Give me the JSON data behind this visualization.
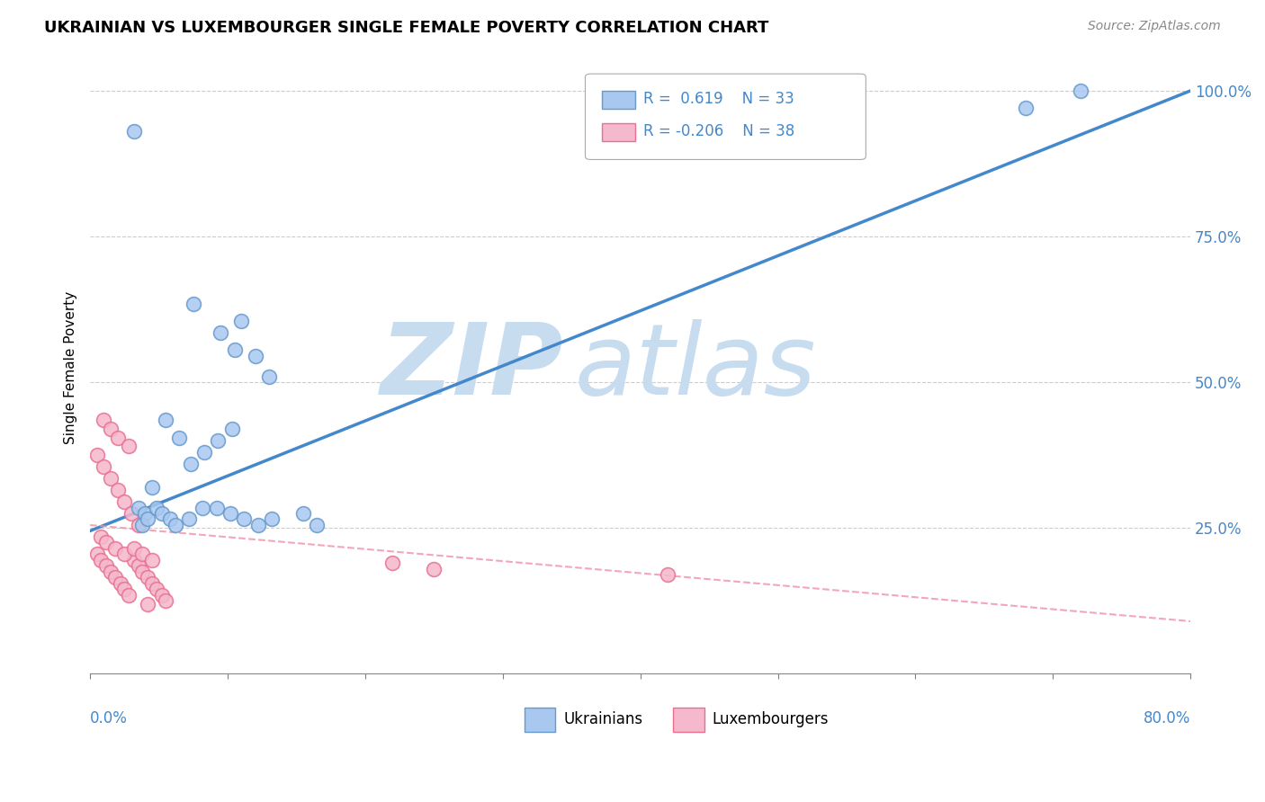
{
  "title": "UKRAINIAN VS LUXEMBOURGER SINGLE FEMALE POVERTY CORRELATION CHART",
  "source": "Source: ZipAtlas.com",
  "ylabel": "Single Female Poverty",
  "yticks": [
    0.0,
    0.25,
    0.5,
    0.75,
    1.0
  ],
  "ytick_labels": [
    "",
    "25.0%",
    "50.0%",
    "75.0%",
    "100.0%"
  ],
  "xlim": [
    0.0,
    0.8
  ],
  "ylim": [
    0.0,
    1.05
  ],
  "blue_color": "#A8C8F0",
  "blue_edge_color": "#6699CC",
  "pink_color": "#F5B8CC",
  "pink_edge_color": "#E87090",
  "blue_trend_color": "#4488CC",
  "pink_trend_color": "#F090A8",
  "watermark_zip_color": "#C8DCF0",
  "watermark_atlas_color": "#C8DCF0",
  "grid_color": "#CCCCCC",
  "background_color": "#FFFFFF",
  "legend_r1_text": "R =  0.619",
  "legend_n1_text": "N = 33",
  "legend_r2_text": "R = -0.206",
  "legend_n2_text": "N = 38",
  "blue_trend_x": [
    0.0,
    0.8
  ],
  "blue_trend_y": [
    0.245,
    1.0
  ],
  "pink_trend_x": [
    0.0,
    0.8
  ],
  "pink_trend_y": [
    0.255,
    0.09
  ],
  "uk_x": [
    0.032,
    0.075,
    0.11,
    0.12,
    0.13,
    0.095,
    0.105,
    0.055,
    0.065,
    0.035,
    0.04,
    0.038,
    0.042,
    0.048,
    0.052,
    0.058,
    0.062,
    0.072,
    0.082,
    0.092,
    0.102,
    0.112,
    0.122,
    0.132,
    0.073,
    0.083,
    0.093,
    0.103,
    0.045,
    0.155,
    0.165,
    0.72,
    0.68
  ],
  "uk_y": [
    0.93,
    0.635,
    0.605,
    0.545,
    0.51,
    0.585,
    0.555,
    0.435,
    0.405,
    0.285,
    0.275,
    0.255,
    0.265,
    0.285,
    0.275,
    0.265,
    0.255,
    0.265,
    0.285,
    0.285,
    0.275,
    0.265,
    0.255,
    0.265,
    0.36,
    0.38,
    0.4,
    0.42,
    0.32,
    0.275,
    0.255,
    1.0,
    0.97
  ],
  "lux_x": [
    0.005,
    0.008,
    0.012,
    0.015,
    0.018,
    0.022,
    0.025,
    0.028,
    0.032,
    0.035,
    0.038,
    0.042,
    0.045,
    0.048,
    0.052,
    0.055,
    0.008,
    0.012,
    0.018,
    0.025,
    0.032,
    0.038,
    0.045,
    0.005,
    0.01,
    0.015,
    0.02,
    0.025,
    0.03,
    0.035,
    0.01,
    0.015,
    0.02,
    0.028,
    0.042,
    0.22,
    0.25,
    0.42
  ],
  "lux_y": [
    0.205,
    0.195,
    0.185,
    0.175,
    0.165,
    0.155,
    0.145,
    0.135,
    0.195,
    0.185,
    0.175,
    0.165,
    0.155,
    0.145,
    0.135,
    0.125,
    0.235,
    0.225,
    0.215,
    0.205,
    0.215,
    0.205,
    0.195,
    0.375,
    0.355,
    0.335,
    0.315,
    0.295,
    0.275,
    0.255,
    0.435,
    0.42,
    0.405,
    0.39,
    0.12,
    0.19,
    0.18,
    0.17
  ]
}
